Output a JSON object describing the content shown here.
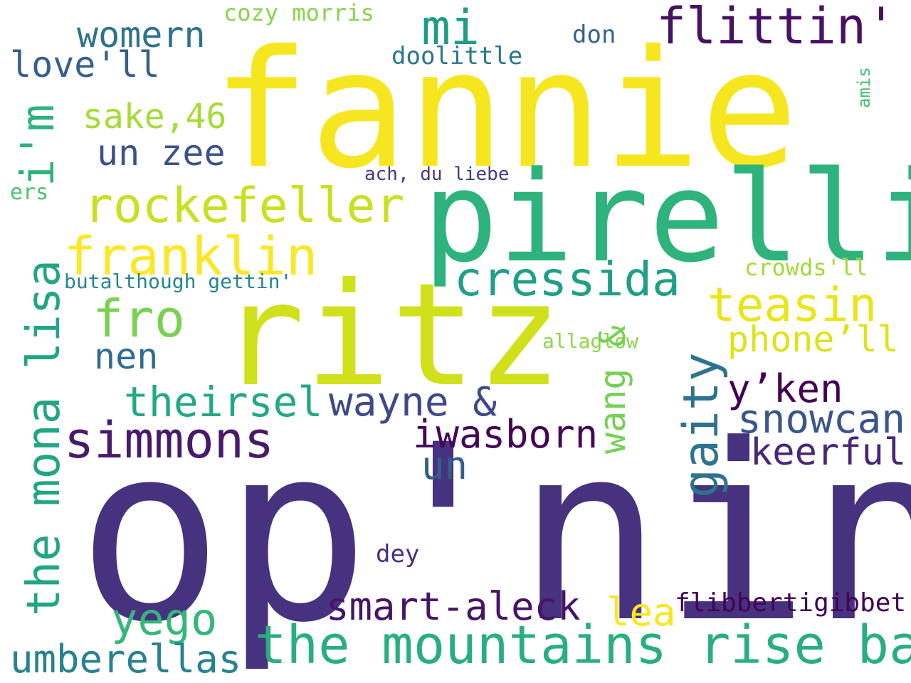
{
  "words": [
    {
      "text": "op'nin",
      "color": "#46327e"
    },
    {
      "text": "fannie",
      "color": "#f6e620"
    },
    {
      "text": "ritz",
      "color": "#d0e11c"
    },
    {
      "text": "pirelli",
      "color": "#2eb37c"
    },
    {
      "text": "the mona lisa",
      "color": "#21a685"
    },
    {
      "text": "i'm",
      "color": "#2db27d"
    },
    {
      "text": "flittin'",
      "color": "#471164"
    },
    {
      "text": "mi",
      "color": "#1e9c89"
    },
    {
      "text": "womern",
      "color": "#2c728e"
    },
    {
      "text": "cozy morris",
      "color": "#86d549"
    },
    {
      "text": "love'll",
      "color": "#355f8d"
    },
    {
      "text": "don",
      "color": "#33638d"
    },
    {
      "text": "doolittle",
      "color": "#2a768e"
    },
    {
      "text": "amis",
      "color": "#42be71"
    },
    {
      "text": "sake,46",
      "color": "#a5db36"
    },
    {
      "text": "un zee",
      "color": "#3b528b"
    },
    {
      "text": "ach, du liebe",
      "color": "#443983"
    },
    {
      "text": "ers",
      "color": "#4ac16d"
    },
    {
      "text": "rockefeller",
      "color": "#c8e020"
    },
    {
      "text": "franklin",
      "color": "#fde725"
    },
    {
      "text": "cressida",
      "color": "#1f9f88"
    },
    {
      "text": "crowds'll",
      "color": "#a0da39"
    },
    {
      "text": "butalthough gettin'",
      "color": "#24868e"
    },
    {
      "text": "teasin",
      "color": "#eae51a"
    },
    {
      "text": "fro",
      "color": "#7ad151"
    },
    {
      "text": "phone’ll",
      "color": "#dde318"
    },
    {
      "text": "allaglow",
      "color": "#8bd646"
    },
    {
      "text": "nen",
      "color": "#2f6c8e"
    },
    {
      "text": "wang &",
      "color": "#75d054"
    },
    {
      "text": "gaity",
      "color": "#2c738e"
    },
    {
      "text": "y’ken",
      "color": "#440154"
    },
    {
      "text": "theirsel",
      "color": "#22a884"
    },
    {
      "text": "wayne &",
      "color": "#3e4989"
    },
    {
      "text": "snowcan",
      "color": "#3a548c"
    },
    {
      "text": "simmons",
      "color": "#481a6c"
    },
    {
      "text": "iwasborn",
      "color": "#450559"
    },
    {
      "text": "keerful",
      "color": "#482677"
    },
    {
      "text": "un",
      "color": "#355e8d"
    },
    {
      "text": "dey",
      "color": "#472d7b"
    },
    {
      "text": "smart-aleck",
      "color": "#481467"
    },
    {
      "text": "lea",
      "color": "#f8e621"
    },
    {
      "text": "flibbertigibbet",
      "color": "#440256"
    },
    {
      "text": "yego",
      "color": "#35b779"
    },
    {
      "text": "the mountains rise ba",
      "color": "#29af7f"
    },
    {
      "text": "umberellas",
      "color": "#26828e"
    }
  ]
}
